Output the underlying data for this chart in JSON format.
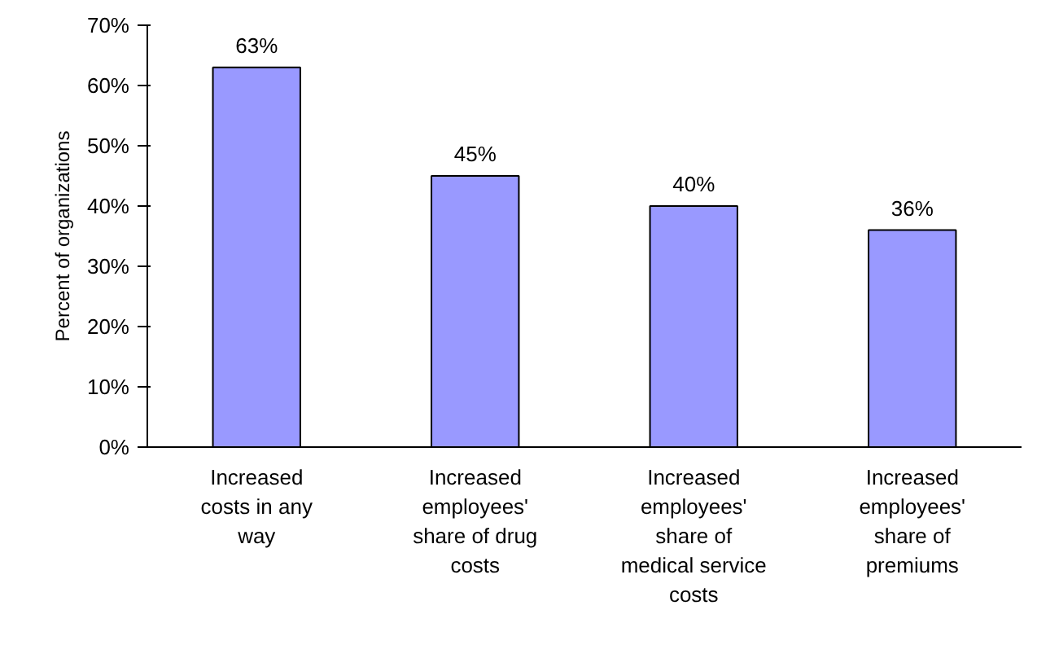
{
  "chart_data": {
    "type": "bar",
    "ylabel": "Percent of organizations",
    "categories": [
      "Increased\ncosts in any\nway",
      "Increased\nemployees'\nshare of drug\ncosts",
      "Increased\nemployees'\nshare of\nmedical service\ncosts",
      "Increased\nemployees'\nshare of\npremiums"
    ],
    "values": [
      63,
      45,
      40,
      36
    ],
    "value_labels": [
      "63%",
      "45%",
      "40%",
      "36%"
    ],
    "color": "#9999ff",
    "ylim": [
      0,
      70
    ],
    "yticks": [
      {
        "value": 0,
        "label": "0%"
      },
      {
        "value": 10,
        "label": "10%"
      },
      {
        "value": 20,
        "label": "20%"
      },
      {
        "value": 30,
        "label": "30%"
      },
      {
        "value": 40,
        "label": "40%"
      },
      {
        "value": 50,
        "label": "50%"
      },
      {
        "value": 60,
        "label": "60%"
      },
      {
        "value": 70,
        "label": "70%"
      }
    ],
    "grid": false
  }
}
